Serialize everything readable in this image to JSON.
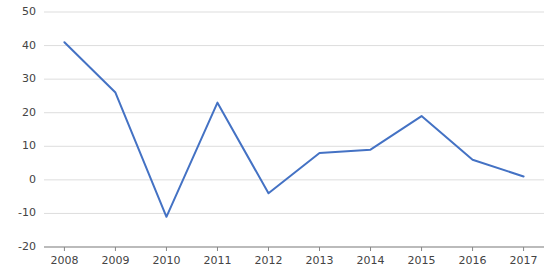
{
  "chart_data": {
    "type": "line",
    "x": [
      2008,
      2009,
      2010,
      2011,
      2012,
      2013,
      2014,
      2015,
      2016,
      2017
    ],
    "values": [
      41,
      26,
      -11,
      23,
      -4,
      8,
      9,
      19,
      6,
      1
    ],
    "color": "#4472C4",
    "xlim": [
      2007.6,
      2017.4
    ],
    "xticks": [
      2008,
      2009,
      2010,
      2011,
      2012,
      2013,
      2014,
      2015,
      2016,
      2017
    ],
    "ylim": [
      -20,
      50
    ],
    "yticks": [
      -20,
      -10,
      0,
      10,
      20,
      30,
      40,
      50
    ],
    "grid": true
  }
}
